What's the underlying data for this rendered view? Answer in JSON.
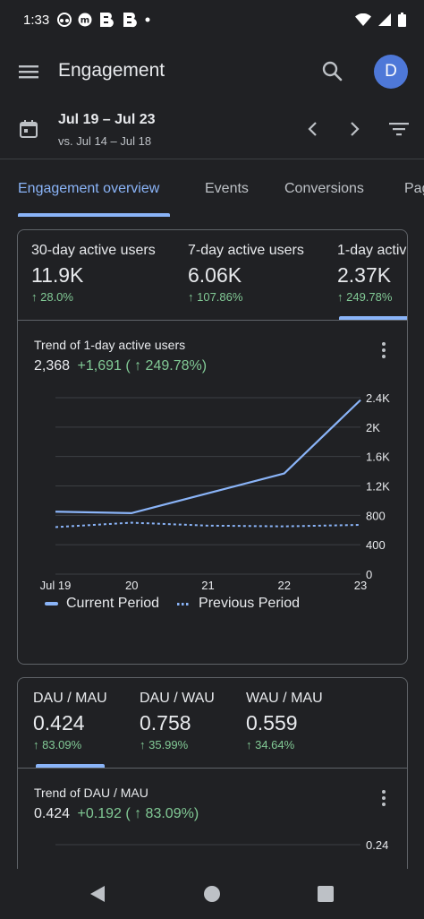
{
  "status_bar": {
    "time": "1:33",
    "icons": [
      "headphones-icon",
      "m-badge-icon",
      "b-logo-icon",
      "b-logo-icon",
      "dot-icon",
      "wifi-icon",
      "signal-icon",
      "battery-icon"
    ]
  },
  "app_bar": {
    "title": "Engagement",
    "avatar_letter": "D",
    "avatar_color": "#4e78d8"
  },
  "date_selector": {
    "range": "Jul 19 – Jul 23",
    "comparison": "vs. Jul 14 – Jul 18"
  },
  "tabs": [
    {
      "label": "Engagement overview",
      "active": true
    },
    {
      "label": "Events",
      "active": false
    },
    {
      "label": "Conversions",
      "active": false
    },
    {
      "label": "Pag",
      "active": false
    }
  ],
  "active_users_card": {
    "metrics": [
      {
        "label": "30-day active users",
        "value": "11.9K",
        "change": "↑ 28.0%"
      },
      {
        "label": "7-day active users",
        "value": "6.06K",
        "change": "↑ 107.86%"
      },
      {
        "label": "1-day activ",
        "value": "2.37K",
        "change": "↑ 249.78%"
      }
    ],
    "selected_metric_index": 2,
    "trend_title": "Trend of 1-day active users",
    "trend_value": "2,368",
    "trend_delta": "+1,691 ( ↑ 249.78%)",
    "legend": {
      "current": "Current Period",
      "previous": "Previous Period"
    }
  },
  "ratio_card": {
    "metrics": [
      {
        "label": "DAU / MAU",
        "value": "0.424",
        "change": "↑ 83.09%"
      },
      {
        "label": "DAU / WAU",
        "value": "0.758",
        "change": "↑ 35.99%"
      },
      {
        "label": "WAU / MAU",
        "value": "0.559",
        "change": "↑ 34.64%"
      }
    ],
    "selected_metric_index": 0,
    "trend_title": "Trend of DAU / MAU",
    "trend_value": "0.424",
    "trend_delta": "+0.192 ( ↑ 83.09%)",
    "partial_ticks": [
      "0.24"
    ]
  },
  "colors": {
    "accent": "#8ab4f8",
    "positive": "#81c995",
    "background": "#202124",
    "border": "#5f6368"
  },
  "chart_data": {
    "type": "line",
    "title": "Trend of 1-day active users",
    "categories": [
      "Jul 19",
      "20",
      "21",
      "22",
      "23"
    ],
    "series": [
      {
        "name": "Current Period",
        "style": "solid",
        "values": [
          850,
          830,
          1100,
          1370,
          2368
        ]
      },
      {
        "name": "Previous Period",
        "style": "dotted",
        "values": [
          640,
          700,
          660,
          650,
          670
        ]
      }
    ],
    "y_ticks": [
      "0",
      "400",
      "800",
      "1.2K",
      "1.6K",
      "2K",
      "2.4K"
    ],
    "ylim": [
      0,
      2400
    ],
    "y_axis_position": "right",
    "grid": true,
    "legend_position": "bottom-left"
  }
}
